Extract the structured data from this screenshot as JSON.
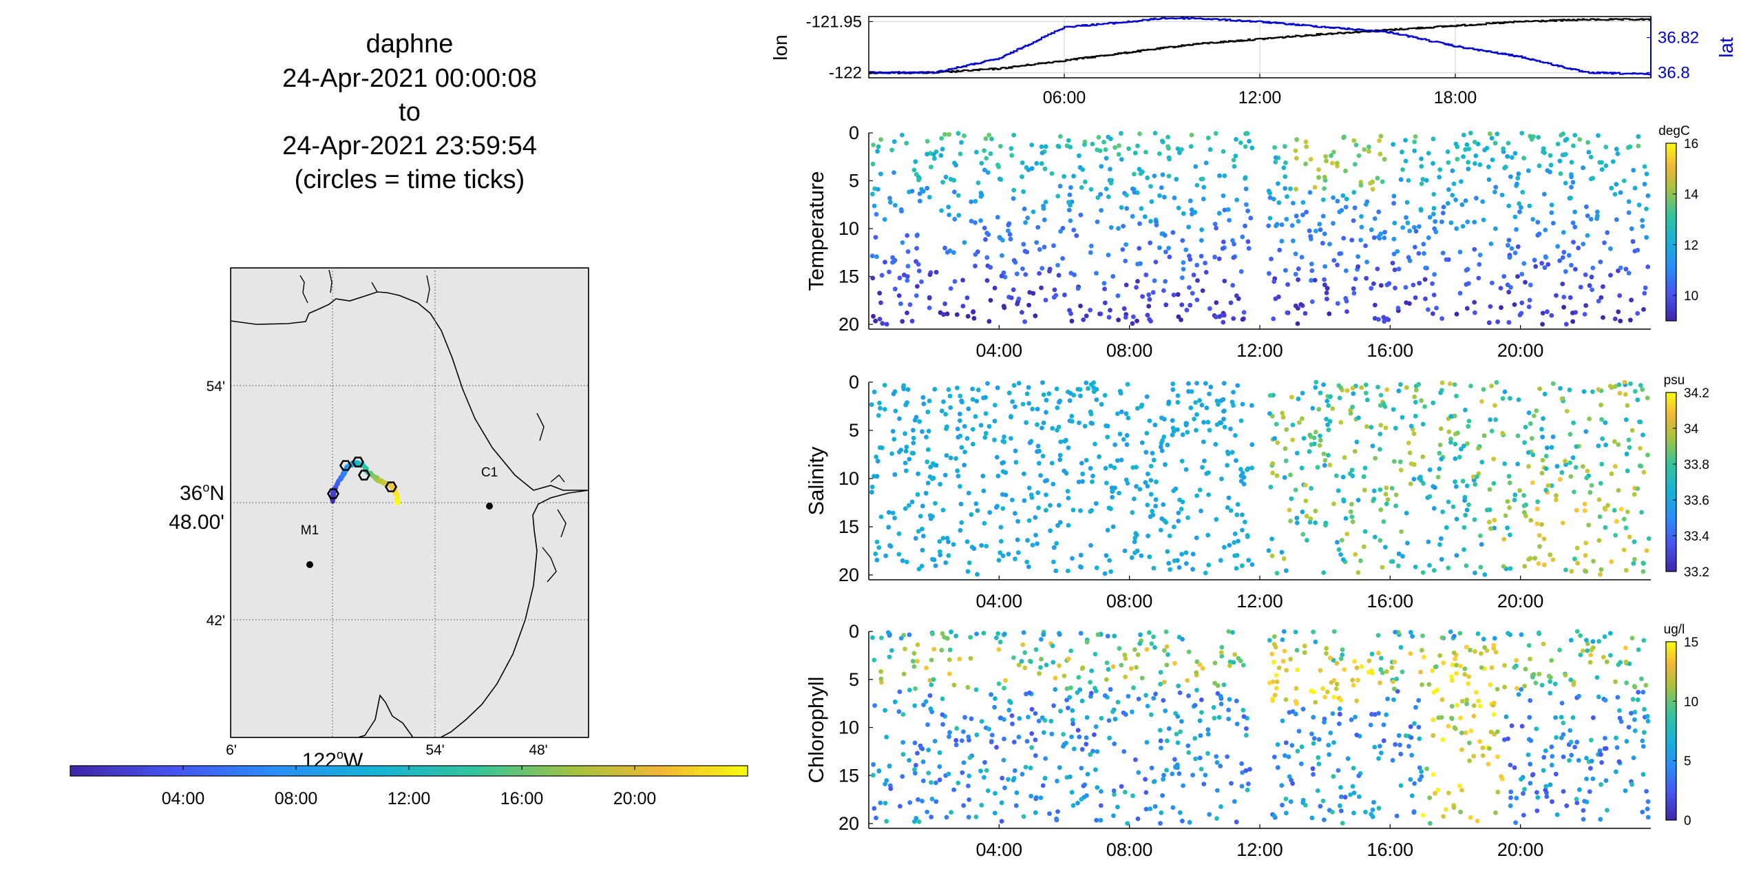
{
  "title_block": {
    "line1": "daphne",
    "line2": "24-Apr-2021 00:00:08",
    "line3": "to",
    "line4": "24-Apr-2021 23:59:54",
    "line5": "(circles = time ticks)"
  },
  "map": {
    "lat_ticks": [
      "54'",
      "42'"
    ],
    "lat_center_label_deg": "36",
    "lat_center_label_sup": "o",
    "lat_center_label_hem": "N",
    "lat_center_label_min": "48.00'",
    "lon_ticks": [
      "6'",
      "54'",
      "48'"
    ],
    "lon_center_label_deg": "122",
    "lon_center_label_sup": "o",
    "lon_center_label_hem": "W",
    "stations": [
      {
        "name": "M1"
      },
      {
        "name": "C1"
      }
    ],
    "colors": {
      "land": "#e6e6e6",
      "water": "#ffffff"
    }
  },
  "time_colorbar": {
    "ticks": [
      "04:00",
      "08:00",
      "12:00",
      "16:00",
      "20:00"
    ]
  },
  "chart_data": [
    {
      "type": "line",
      "name": "lon_lat_timeseries",
      "ylabel_left": "lon",
      "ylabel_right": "lat",
      "yticks_left": [
        "-121.95",
        "-122"
      ],
      "yticks_right": [
        "36.82",
        "36.8"
      ],
      "xticks": [
        "06:00",
        "12:00",
        "18:00"
      ],
      "xlim_hours": [
        0,
        24
      ],
      "ylim_left": [
        -122.005,
        -121.945
      ],
      "ylim_right": [
        36.797,
        36.832
      ],
      "grid": true,
      "series": [
        {
          "name": "lon",
          "color": "#000000",
          "x": [
            0,
            2,
            4,
            6,
            8,
            10,
            12,
            14,
            16,
            18,
            20,
            22,
            24
          ],
          "y": [
            -122.0,
            -122.0,
            -121.996,
            -121.988,
            -121.98,
            -121.972,
            -121.967,
            -121.962,
            -121.958,
            -121.954,
            -121.95,
            -121.948,
            -121.948
          ]
        },
        {
          "name": "lat",
          "color": "#0000cc",
          "x": [
            0,
            2,
            4,
            6,
            8,
            9,
            10,
            12,
            14,
            16,
            18,
            20,
            22,
            24
          ],
          "y": [
            36.8,
            36.8,
            36.808,
            36.826,
            36.829,
            36.831,
            36.831,
            36.829,
            36.826,
            36.823,
            36.815,
            36.809,
            36.8,
            36.799
          ]
        }
      ]
    },
    {
      "type": "scatter",
      "name": "temperature",
      "ylabel": "Temperature",
      "colorbar_unit": "degC",
      "colorbar_ticks": [
        "16",
        "14",
        "12",
        "10"
      ],
      "clim": [
        9,
        16
      ],
      "yticks": [
        "0",
        "5",
        "10",
        "15",
        "20"
      ],
      "ylim": [
        0,
        20.5
      ],
      "xticks": [
        "04:00",
        "08:00",
        "12:00",
        "16:00",
        "20:00"
      ],
      "xlim_hours": [
        0,
        24
      ],
      "gap_hours": [
        11.7,
        12.4
      ],
      "summary": "dense scatter of profile samples, depth 0-20, colored by temperature (mostly 9-13 degC)"
    },
    {
      "type": "scatter",
      "name": "salinity",
      "ylabel": "Salinity",
      "colorbar_unit": "psu",
      "colorbar_ticks": [
        "34.2",
        "34",
        "33.8",
        "33.6",
        "33.4",
        "33.2"
      ],
      "clim": [
        33.2,
        34.2
      ],
      "yticks": [
        "0",
        "5",
        "10",
        "15",
        "20"
      ],
      "ylim": [
        0,
        20.5
      ],
      "xticks": [
        "04:00",
        "08:00",
        "12:00",
        "16:00",
        "20:00"
      ],
      "xlim_hours": [
        0,
        24
      ],
      "gap_hours": [
        11.7,
        12.4
      ],
      "summary": "scatter of profile samples, depth 0-20, colored by salinity (33.2-34.2 psu)"
    },
    {
      "type": "scatter",
      "name": "chlorophyll",
      "ylabel": "Chlorophyll",
      "colorbar_unit": "ug/l",
      "colorbar_ticks": [
        "15",
        "10",
        "5",
        "0"
      ],
      "clim": [
        0,
        15
      ],
      "yticks": [
        "0",
        "5",
        "10",
        "15",
        "20"
      ],
      "ylim": [
        0,
        20.5
      ],
      "xticks": [
        "04:00",
        "08:00",
        "12:00",
        "16:00",
        "20:00"
      ],
      "xlim_hours": [
        0,
        24
      ],
      "gap_hours": [
        11.7,
        12.4
      ],
      "summary": "very dense scatter of profile samples, depth 0-20, colored by chlorophyll (0-15 ug/l)"
    }
  ]
}
